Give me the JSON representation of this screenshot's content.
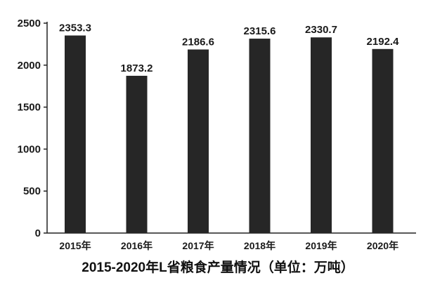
{
  "chart_data": {
    "type": "bar",
    "title": "2015-2020年L省粮食产量情况（单位：万吨）",
    "xlabel": "",
    "ylabel": "",
    "categories": [
      "2015年",
      "2016年",
      "2017年",
      "2018年",
      "2019年",
      "2020年"
    ],
    "values": [
      2353.3,
      1873.2,
      2186.6,
      2315.6,
      2330.7,
      2192.4
    ],
    "value_labels": [
      "2353.3",
      "1873.2",
      "2186.6",
      "2315.6",
      "2330.7",
      "2192.4"
    ],
    "ylim": [
      0,
      2500
    ],
    "yticks": [
      0,
      500,
      1000,
      1500,
      2000,
      2500
    ],
    "ytick_labels": [
      "0",
      "500",
      "1000",
      "1500",
      "2000",
      "2500"
    ],
    "grid": false,
    "legend": "none",
    "bar_color": "#262626",
    "axis_color": "#222222"
  }
}
